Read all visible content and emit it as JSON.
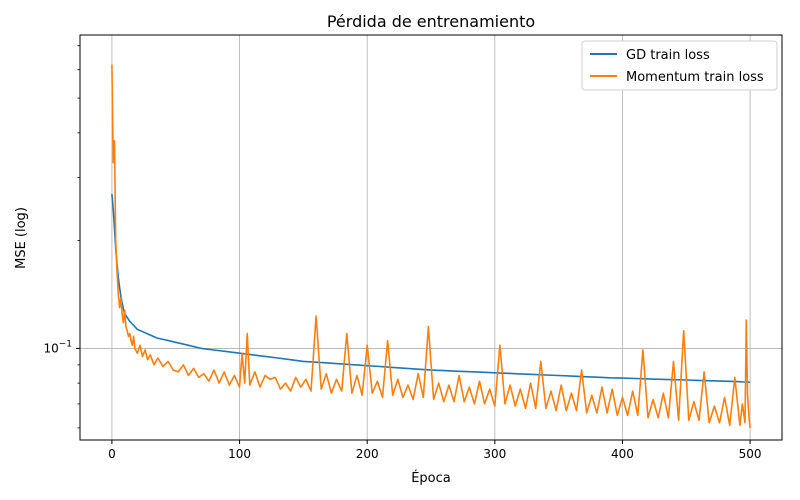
{
  "chart_data": {
    "type": "line",
    "title": "Pérdida de entrenamiento",
    "xlabel": "Época",
    "ylabel": "MSE (log)",
    "xlim": [
      -25,
      525
    ],
    "ylim": [
      0.0555,
      0.75
    ],
    "yscale": "log",
    "grid": true,
    "legend_location": "top-right",
    "x_ticks": [
      0,
      100,
      200,
      300,
      400,
      500
    ],
    "x_tick_labels": [
      "0",
      "100",
      "200",
      "300",
      "400",
      "500"
    ],
    "y_major_ticks": [
      0.1
    ],
    "y_major_tick_labels": [
      "10",
      "−1"
    ],
    "y_minor_ticks": [
      0.06,
      0.07,
      0.08,
      0.09,
      0.2,
      0.3,
      0.4,
      0.5,
      0.6,
      0.7
    ],
    "series": [
      {
        "name": "GD train loss",
        "color": "#1f77b4",
        "x": [
          0,
          1,
          2,
          3,
          4,
          5,
          6,
          7,
          8,
          9,
          10,
          12,
          14,
          16,
          18,
          20,
          25,
          30,
          35,
          40,
          45,
          50,
          60,
          70,
          80,
          90,
          100,
          110,
          120,
          130,
          140,
          150,
          160,
          170,
          180,
          190,
          200,
          210,
          220,
          230,
          240,
          250,
          260,
          270,
          280,
          290,
          300,
          310,
          320,
          330,
          340,
          350,
          360,
          370,
          380,
          390,
          400,
          410,
          420,
          430,
          440,
          450,
          460,
          470,
          480,
          490,
          495,
          500
        ],
        "y": [
          0.27,
          0.245,
          0.215,
          0.19,
          0.172,
          0.158,
          0.148,
          0.14,
          0.134,
          0.129,
          0.125,
          0.122,
          0.119,
          0.117,
          0.115,
          0.113,
          0.111,
          0.109,
          0.107,
          0.106,
          0.105,
          0.104,
          0.102,
          0.1,
          0.099,
          0.098,
          0.097,
          0.096,
          0.095,
          0.094,
          0.093,
          0.092,
          0.0915,
          0.091,
          0.0905,
          0.09,
          0.0895,
          0.089,
          0.0885,
          0.088,
          0.0875,
          0.087,
          0.0867,
          0.0864,
          0.0861,
          0.0858,
          0.0855,
          0.0852,
          0.0849,
          0.0846,
          0.0843,
          0.084,
          0.0837,
          0.0834,
          0.0831,
          0.0828,
          0.0826,
          0.0824,
          0.0822,
          0.082,
          0.0818,
          0.0816,
          0.0814,
          0.0812,
          0.081,
          0.0808,
          0.0806,
          0.0805
        ]
      },
      {
        "name": "Momentum train loss",
        "color": "#ff7f0e",
        "x": [
          0,
          1,
          2,
          3,
          4,
          5,
          6,
          7,
          8,
          9,
          10,
          11,
          12,
          13,
          14,
          15,
          16,
          17,
          18,
          20,
          22,
          24,
          26,
          28,
          30,
          33,
          36,
          40,
          44,
          48,
          52,
          56,
          60,
          64,
          68,
          72,
          76,
          80,
          84,
          88,
          92,
          96,
          100,
          102,
          104,
          106,
          108,
          112,
          116,
          120,
          124,
          128,
          132,
          136,
          140,
          144,
          148,
          152,
          156,
          160,
          164,
          168,
          172,
          176,
          180,
          184,
          188,
          192,
          196,
          200,
          204,
          208,
          212,
          216,
          220,
          224,
          228,
          232,
          236,
          240,
          244,
          248,
          252,
          256,
          260,
          264,
          268,
          272,
          276,
          280,
          284,
          288,
          292,
          296,
          300,
          304,
          308,
          312,
          316,
          320,
          324,
          328,
          332,
          336,
          340,
          344,
          348,
          352,
          356,
          360,
          364,
          368,
          372,
          376,
          380,
          384,
          388,
          392,
          396,
          400,
          404,
          408,
          412,
          416,
          420,
          424,
          428,
          432,
          436,
          440,
          444,
          448,
          452,
          456,
          460,
          464,
          468,
          472,
          476,
          480,
          484,
          488,
          492,
          494,
          496,
          497,
          498,
          499,
          500
        ],
        "y": [
          0.62,
          0.33,
          0.38,
          0.2,
          0.165,
          0.142,
          0.13,
          0.138,
          0.125,
          0.118,
          0.128,
          0.115,
          0.112,
          0.108,
          0.11,
          0.105,
          0.102,
          0.108,
          0.1,
          0.097,
          0.102,
          0.095,
          0.099,
          0.093,
          0.096,
          0.09,
          0.094,
          0.089,
          0.092,
          0.087,
          0.086,
          0.09,
          0.084,
          0.088,
          0.083,
          0.085,
          0.081,
          0.087,
          0.08,
          0.086,
          0.079,
          0.084,
          0.078,
          0.097,
          0.08,
          0.11,
          0.079,
          0.086,
          0.078,
          0.084,
          0.082,
          0.083,
          0.077,
          0.08,
          0.076,
          0.083,
          0.078,
          0.082,
          0.076,
          0.123,
          0.077,
          0.085,
          0.075,
          0.082,
          0.076,
          0.11,
          0.075,
          0.084,
          0.074,
          0.102,
          0.075,
          0.081,
          0.073,
          0.105,
          0.074,
          0.082,
          0.073,
          0.079,
          0.072,
          0.085,
          0.073,
          0.115,
          0.072,
          0.08,
          0.071,
          0.079,
          0.071,
          0.084,
          0.071,
          0.078,
          0.07,
          0.081,
          0.07,
          0.077,
          0.069,
          0.102,
          0.07,
          0.079,
          0.069,
          0.077,
          0.068,
          0.08,
          0.068,
          0.092,
          0.068,
          0.076,
          0.067,
          0.079,
          0.067,
          0.075,
          0.067,
          0.087,
          0.066,
          0.074,
          0.066,
          0.078,
          0.066,
          0.077,
          0.065,
          0.073,
          0.065,
          0.076,
          0.065,
          0.099,
          0.064,
          0.072,
          0.064,
          0.075,
          0.064,
          0.092,
          0.063,
          0.112,
          0.063,
          0.071,
          0.063,
          0.086,
          0.062,
          0.069,
          0.062,
          0.073,
          0.061,
          0.083,
          0.061,
          0.07,
          0.062,
          0.12,
          0.075,
          0.065,
          0.06
        ]
      }
    ]
  }
}
